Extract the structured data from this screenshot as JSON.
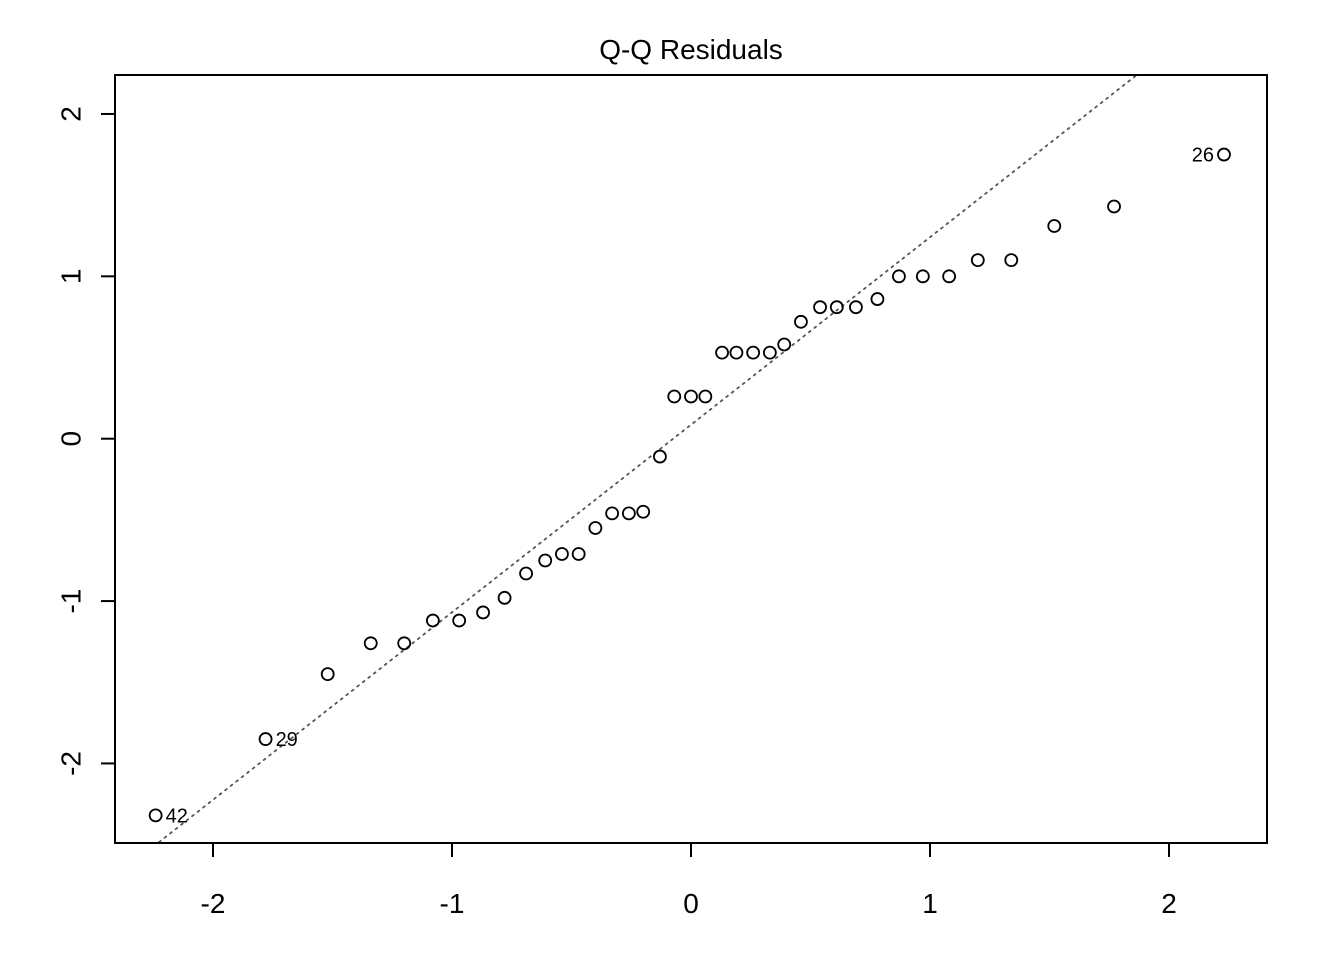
{
  "chart_data": {
    "type": "scatter",
    "title": "Q-Q Residuals",
    "xlabel": "",
    "ylabel": "",
    "xlim": [
      -2.41,
      2.41
    ],
    "ylim": [
      -2.49,
      2.24
    ],
    "x_ticks": [
      -2,
      -1,
      0,
      1,
      2
    ],
    "y_ticks": [
      -2,
      -1,
      0,
      1,
      2
    ],
    "grid": false,
    "points": [
      {
        "x": -2.24,
        "y": -2.32
      },
      {
        "x": -1.78,
        "y": -1.85
      },
      {
        "x": -1.52,
        "y": -1.45
      },
      {
        "x": -1.34,
        "y": -1.26
      },
      {
        "x": -1.2,
        "y": -1.26
      },
      {
        "x": -1.08,
        "y": -1.12
      },
      {
        "x": -0.97,
        "y": -1.12
      },
      {
        "x": -0.87,
        "y": -1.07
      },
      {
        "x": -0.78,
        "y": -0.98
      },
      {
        "x": -0.69,
        "y": -0.83
      },
      {
        "x": -0.61,
        "y": -0.75
      },
      {
        "x": -0.54,
        "y": -0.71
      },
      {
        "x": -0.47,
        "y": -0.71
      },
      {
        "x": -0.4,
        "y": -0.55
      },
      {
        "x": -0.33,
        "y": -0.46
      },
      {
        "x": -0.26,
        "y": -0.46
      },
      {
        "x": -0.2,
        "y": -0.45
      },
      {
        "x": -0.13,
        "y": -0.11
      },
      {
        "x": -0.07,
        "y": 0.26
      },
      {
        "x": 0.0,
        "y": 0.26
      },
      {
        "x": 0.06,
        "y": 0.26
      },
      {
        "x": 0.13,
        "y": 0.53
      },
      {
        "x": 0.19,
        "y": 0.53
      },
      {
        "x": 0.26,
        "y": 0.53
      },
      {
        "x": 0.33,
        "y": 0.53
      },
      {
        "x": 0.39,
        "y": 0.58
      },
      {
        "x": 0.46,
        "y": 0.72
      },
      {
        "x": 0.54,
        "y": 0.81
      },
      {
        "x": 0.61,
        "y": 0.81
      },
      {
        "x": 0.69,
        "y": 0.81
      },
      {
        "x": 0.78,
        "y": 0.86
      },
      {
        "x": 0.87,
        "y": 1.0
      },
      {
        "x": 0.97,
        "y": 1.0
      },
      {
        "x": 1.08,
        "y": 1.0
      },
      {
        "x": 1.2,
        "y": 1.1
      },
      {
        "x": 1.34,
        "y": 1.1
      },
      {
        "x": 1.52,
        "y": 1.31
      },
      {
        "x": 1.77,
        "y": 1.43
      },
      {
        "x": 2.23,
        "y": 1.75
      }
    ],
    "labeled_points": [
      {
        "label": "42",
        "x": -2.24,
        "y": -2.32,
        "side": "right"
      },
      {
        "label": "29",
        "x": -1.78,
        "y": -1.85,
        "side": "right"
      },
      {
        "label": "26",
        "x": 2.23,
        "y": 1.75,
        "side": "left"
      }
    ],
    "reference_line": {
      "style": "dotted",
      "intercept": 0.086,
      "slope": 1.155
    },
    "colors": {
      "points": "#000000",
      "reference_line": "#555555",
      "axes": "#000000",
      "background": "#ffffff"
    }
  }
}
